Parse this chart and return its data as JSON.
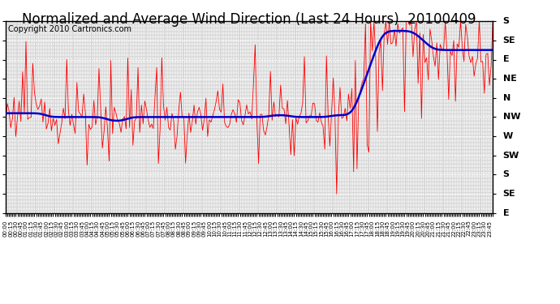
{
  "title": "Normalized and Average Wind Direction (Last 24 Hours)  20100409",
  "copyright": "Copyright 2010 Cartronics.com",
  "y_labels_top_to_bottom": [
    "S",
    "SE",
    "E",
    "NE",
    "N",
    "NW",
    "W",
    "SW",
    "S",
    "SE",
    "E"
  ],
  "background_color": "#ffffff",
  "plot_bg_color": "#d8d8d8",
  "grid_color": "#ffffff",
  "red_color": "#ff0000",
  "blue_color": "#0000cc",
  "title_fontsize": 12,
  "copyright_fontsize": 7,
  "n_points": 288,
  "y_min": 0,
  "y_max": 10
}
